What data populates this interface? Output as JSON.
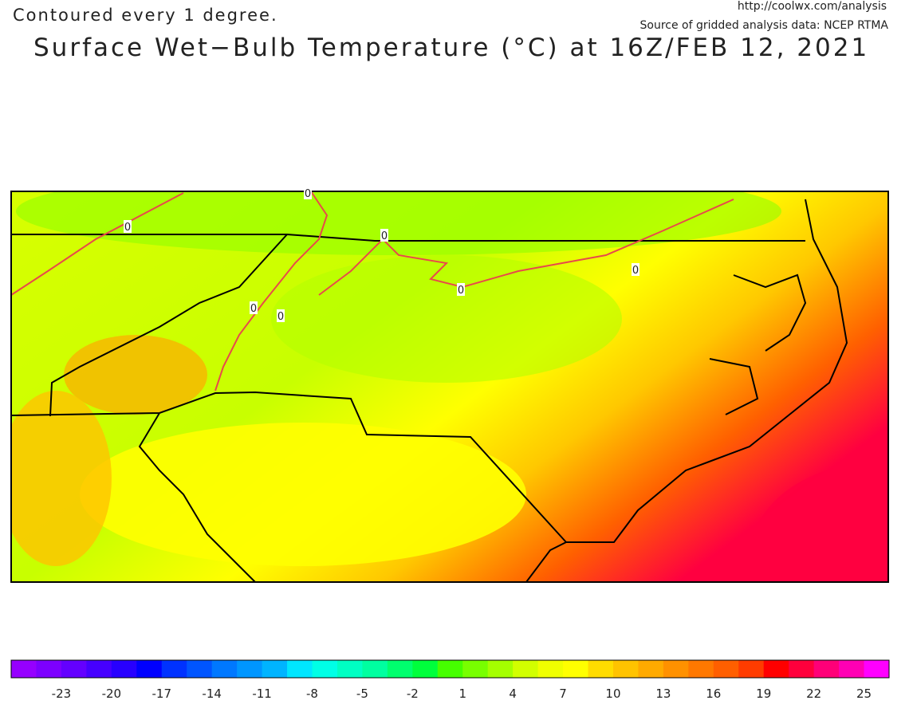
{
  "header": {
    "note": "Contoured every 1 degree.",
    "url": "http://coolwx.com/analysis",
    "source": "Source of gridded analysis data:  NCEP RTMA",
    "title": "Surface Wet−Bulb Temperature (°C) at 16Z/FEB 12, 2021"
  },
  "map": {
    "contour_labels": [
      "0",
      "0",
      "0",
      "0",
      "0",
      "0",
      "0"
    ]
  },
  "colorbar": {
    "range": [
      -26,
      26.5
    ],
    "labels": [
      -23,
      -20,
      -17,
      -14,
      -11,
      -8,
      -5,
      -2,
      1,
      4,
      7,
      10,
      13,
      16,
      19,
      22,
      25
    ],
    "colors": [
      "#9600ff",
      "#7d00ff",
      "#6400ff",
      "#4600ff",
      "#2800ff",
      "#0000ff",
      "#0032ff",
      "#0055ff",
      "#0078ff",
      "#0096ff",
      "#00b4ff",
      "#00e6ff",
      "#00ffe6",
      "#00ffc3",
      "#00ffa0",
      "#00ff6e",
      "#00ff3c",
      "#46ff00",
      "#78ff00",
      "#a5ff00",
      "#d2ff00",
      "#f0ff00",
      "#ffff00",
      "#ffdc00",
      "#ffc300",
      "#ffaa00",
      "#ff9100",
      "#ff7800",
      "#ff5f00",
      "#ff3c00",
      "#ff0000",
      "#ff003c",
      "#ff0078",
      "#ff00b4",
      "#ff00ff"
    ]
  }
}
